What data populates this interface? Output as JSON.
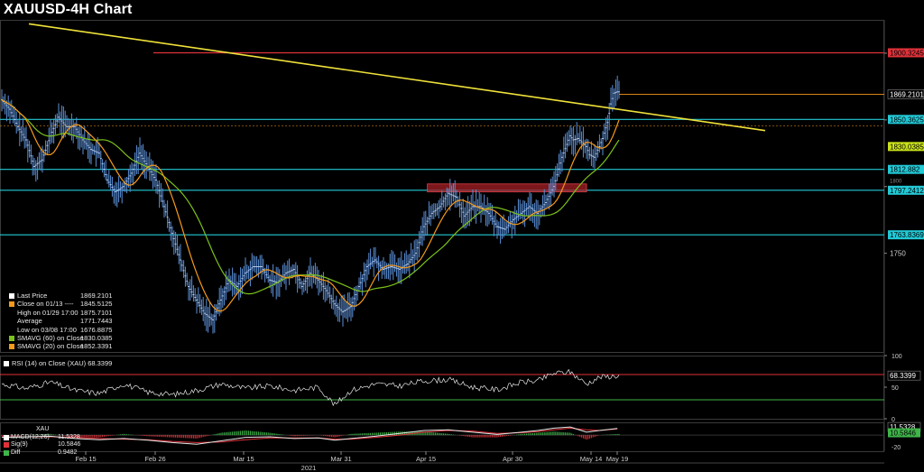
{
  "title": "XAUUSD-4H Chart",
  "colors": {
    "background": "#000000",
    "price": "#5b8fd6",
    "sma60": "#7cc21a",
    "sma20": "#f59a1b",
    "trendline": "#f0e23a",
    "resistance": "#e0323a",
    "support": "#22c9d6",
    "zone": "#a61f26",
    "rsi": "#e8e8e8",
    "macd": "#e8e8e8",
    "signal": "#e0323a",
    "diff": "#3fb54a"
  },
  "chart_data": [
    {
      "type": "line",
      "panel": "price",
      "title": "XAUUSD-4H Chart",
      "x_axis": {
        "tick_labels": [
          "Feb 15",
          "Feb 26",
          "Mar 15",
          "Mar 31",
          "Apr 15",
          "Apr 30",
          "May 14",
          "May 19"
        ],
        "year_label": "2021"
      },
      "y_axis_ticks": [
        "1900",
        "1850",
        "1800",
        "1750"
      ],
      "ylim": [
        1676,
        1925
      ],
      "x_index_range": [
        0,
        380
      ],
      "price_series": [
        [
          0,
          1865
        ],
        [
          5,
          1858
        ],
        [
          10,
          1845
        ],
        [
          15,
          1835
        ],
        [
          20,
          1815
        ],
        [
          25,
          1820
        ],
        [
          30,
          1838
        ],
        [
          35,
          1852
        ],
        [
          40,
          1845
        ],
        [
          45,
          1845
        ],
        [
          50,
          1835
        ],
        [
          55,
          1828
        ],
        [
          60,
          1825
        ],
        [
          65,
          1805
        ],
        [
          70,
          1796
        ],
        [
          75,
          1800
        ],
        [
          80,
          1810
        ],
        [
          85,
          1825
        ],
        [
          90,
          1815
        ],
        [
          95,
          1805
        ],
        [
          100,
          1785
        ],
        [
          105,
          1765
        ],
        [
          110,
          1745
        ],
        [
          115,
          1725
        ],
        [
          120,
          1715
        ],
        [
          125,
          1705
        ],
        [
          130,
          1700
        ],
        [
          135,
          1715
        ],
        [
          140,
          1730
        ],
        [
          145,
          1725
        ],
        [
          150,
          1735
        ],
        [
          155,
          1740
        ],
        [
          160,
          1740
        ],
        [
          165,
          1730
        ],
        [
          170,
          1728
        ],
        [
          175,
          1735
        ],
        [
          180,
          1738
        ],
        [
          185,
          1725
        ],
        [
          190,
          1735
        ],
        [
          195,
          1730
        ],
        [
          200,
          1722
        ],
        [
          205,
          1712
        ],
        [
          210,
          1706
        ],
        [
          215,
          1710
        ],
        [
          220,
          1725
        ],
        [
          225,
          1740
        ],
        [
          230,
          1745
        ],
        [
          235,
          1738
        ],
        [
          240,
          1740
        ],
        [
          245,
          1738
        ],
        [
          250,
          1742
        ],
        [
          255,
          1750
        ],
        [
          260,
          1770
        ],
        [
          265,
          1780
        ],
        [
          270,
          1785
        ],
        [
          275,
          1795
        ],
        [
          280,
          1792
        ],
        [
          285,
          1778
        ],
        [
          290,
          1785
        ],
        [
          295,
          1785
        ],
        [
          300,
          1780
        ],
        [
          305,
          1770
        ],
        [
          310,
          1768
        ],
        [
          315,
          1775
        ],
        [
          320,
          1780
        ],
        [
          325,
          1785
        ],
        [
          330,
          1780
        ],
        [
          335,
          1788
        ],
        [
          340,
          1800
        ],
        [
          345,
          1822
        ],
        [
          350,
          1838
        ],
        [
          352,
          1835
        ],
        [
          355,
          1836
        ],
        [
          360,
          1830
        ],
        [
          362,
          1824
        ],
        [
          365,
          1822
        ],
        [
          368,
          1830
        ],
        [
          370,
          1836
        ],
        [
          373,
          1848
        ],
        [
          375,
          1862
        ],
        [
          377,
          1870
        ],
        [
          379,
          1871
        ]
      ],
      "lines": [
        {
          "kind": "trendline",
          "points": [
            [
              0,
              1922
            ],
            [
              380,
              1842
            ]
          ]
        },
        {
          "kind": "resistance",
          "value": 1900.3245,
          "label": "1900.3245"
        },
        {
          "kind": "support",
          "value": 1850.3625,
          "label": "1850.3625"
        },
        {
          "kind": "support",
          "value": 1812.882,
          "label": "1812.882"
        },
        {
          "kind": "support",
          "value": 1797.2412,
          "label": "1797.2412"
        },
        {
          "kind": "support",
          "value": 1763.8369,
          "label": "1763.8369"
        }
      ],
      "zone": {
        "x_range": [
          262,
          360
        ],
        "y_range": [
          1796,
          1802
        ]
      },
      "price_labels": [
        {
          "value": 1869.2101,
          "label": "1869.2101",
          "color": "#ffffff"
        },
        {
          "value": 1830.0385,
          "label": "1830.0385",
          "color": "#c9e21a"
        }
      ],
      "legend": [
        {
          "name": "Last Price",
          "value": "1869.2101",
          "color": "#ffffff"
        },
        {
          "name": "Close on 01/13 ----",
          "value": "1845.5125",
          "color": "#f59a1b"
        },
        {
          "name": "High on 01/29 17:00",
          "value": "1875.7101",
          "color": ""
        },
        {
          "name": "Average",
          "value": "1771.7443",
          "color": ""
        },
        {
          "name": "Low on 03/08 17:00",
          "value": "1676.8875",
          "color": ""
        },
        {
          "name": "SMAVG (60) on Close",
          "value": "1830.0385",
          "color": "#7cc21a"
        },
        {
          "name": "SMAVG (20) on Close",
          "value": "1852.3391",
          "color": "#f59a1b"
        }
      ]
    },
    {
      "type": "line",
      "panel": "rsi",
      "legend": "RSI (14) on Close (XAU) 68.3399",
      "y_axis_ticks": [
        "100",
        "50",
        "0"
      ],
      "ylim": [
        0,
        100
      ],
      "levels": [
        70,
        30
      ],
      "last_value_label": "68.3399",
      "series": [
        [
          0,
          55
        ],
        [
          15,
          48
        ],
        [
          30,
          58
        ],
        [
          45,
          45
        ],
        [
          60,
          40
        ],
        [
          75,
          55
        ],
        [
          90,
          42
        ],
        [
          105,
          38
        ],
        [
          120,
          45
        ],
        [
          135,
          55
        ],
        [
          150,
          48
        ],
        [
          165,
          52
        ],
        [
          180,
          45
        ],
        [
          195,
          50
        ],
        [
          205,
          22
        ],
        [
          215,
          45
        ],
        [
          230,
          55
        ],
        [
          245,
          52
        ],
        [
          260,
          60
        ],
        [
          275,
          62
        ],
        [
          290,
          50
        ],
        [
          305,
          46
        ],
        [
          320,
          58
        ],
        [
          330,
          60
        ],
        [
          340,
          72
        ],
        [
          350,
          74
        ],
        [
          360,
          55
        ],
        [
          368,
          66
        ],
        [
          379,
          68
        ]
      ]
    },
    {
      "type": "line",
      "panel": "macd",
      "legend_title": "XAU",
      "ylim": [
        -28,
        22
      ],
      "y_axis_ticks": [
        "-20"
      ],
      "value_labels": [
        "11.5328",
        "10.5846"
      ],
      "legend": [
        {
          "name": "MACD(12,26)",
          "value": "11.5328",
          "color": "#ffffff"
        },
        {
          "name": "Sig(9)",
          "value": "10.5846",
          "color": "#e0323a"
        },
        {
          "name": "Diff",
          "value": "0.9482",
          "color": "#3fb54a"
        }
      ],
      "macd_series": [
        [
          0,
          -4
        ],
        [
          15,
          -3
        ],
        [
          30,
          -2
        ],
        [
          45,
          -6
        ],
        [
          60,
          -8
        ],
        [
          75,
          -6
        ],
        [
          90,
          -9
        ],
        [
          105,
          -13
        ],
        [
          120,
          -16
        ],
        [
          135,
          -10
        ],
        [
          150,
          -4
        ],
        [
          165,
          -3
        ],
        [
          180,
          -6
        ],
        [
          195,
          -5
        ],
        [
          205,
          -9
        ],
        [
          215,
          -6
        ],
        [
          230,
          -2
        ],
        [
          245,
          3
        ],
        [
          260,
          8
        ],
        [
          275,
          9
        ],
        [
          290,
          5
        ],
        [
          305,
          1
        ],
        [
          320,
          5
        ],
        [
          330,
          8
        ],
        [
          340,
          12
        ],
        [
          350,
          14
        ],
        [
          360,
          5
        ],
        [
          368,
          8
        ],
        [
          379,
          11.5
        ]
      ],
      "signal_series": [
        [
          0,
          -3
        ],
        [
          15,
          -3
        ],
        [
          30,
          -3
        ],
        [
          45,
          -4
        ],
        [
          60,
          -6
        ],
        [
          75,
          -7
        ],
        [
          90,
          -8
        ],
        [
          105,
          -11
        ],
        [
          120,
          -13
        ],
        [
          135,
          -12
        ],
        [
          150,
          -8
        ],
        [
          165,
          -5
        ],
        [
          180,
          -5
        ],
        [
          195,
          -5
        ],
        [
          205,
          -7
        ],
        [
          215,
          -7
        ],
        [
          230,
          -4
        ],
        [
          245,
          0
        ],
        [
          260,
          5
        ],
        [
          275,
          8
        ],
        [
          290,
          7
        ],
        [
          305,
          3
        ],
        [
          320,
          4
        ],
        [
          330,
          6
        ],
        [
          340,
          9
        ],
        [
          350,
          12
        ],
        [
          360,
          9
        ],
        [
          368,
          8
        ],
        [
          379,
          10.6
        ]
      ]
    }
  ]
}
